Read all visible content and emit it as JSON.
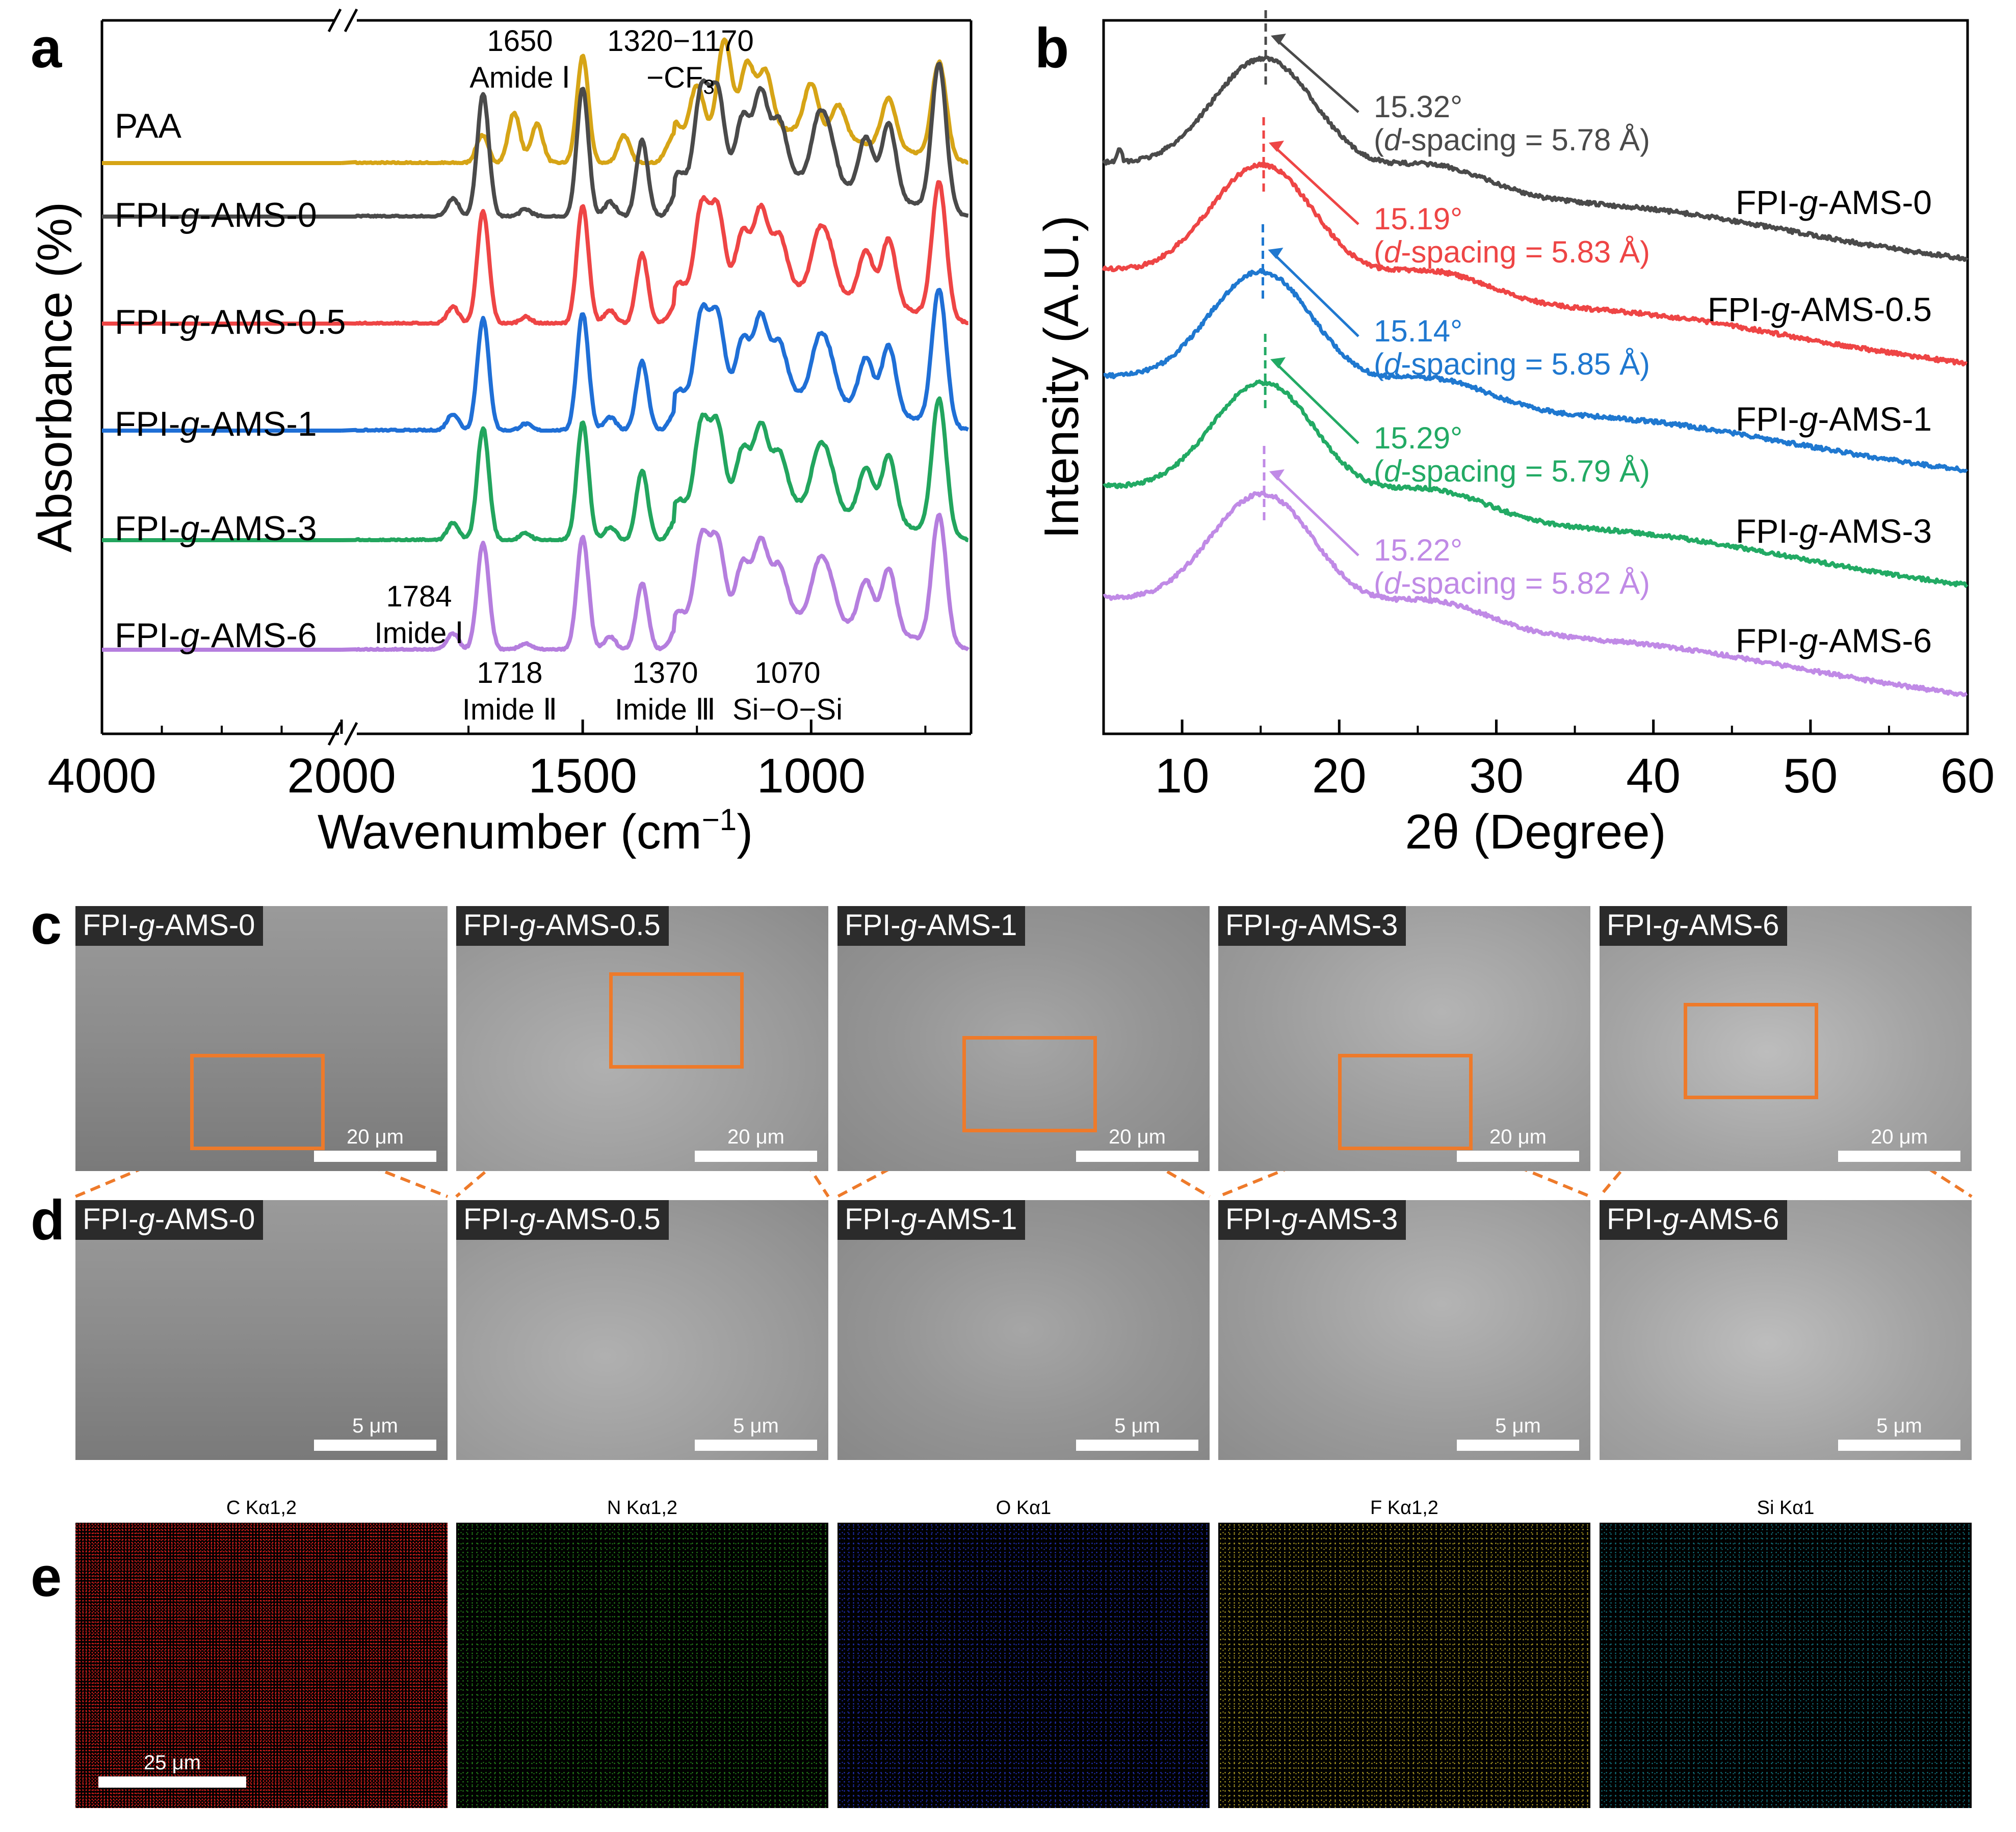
{
  "panel_labels": {
    "a": "a",
    "b": "b",
    "c": "c",
    "d": "d",
    "e": "e"
  },
  "chart_data": [
    {
      "panel": "a",
      "type": "line",
      "title": "",
      "xlabel_main": "Wavenumber (cm",
      "xlabel_sup": "−1",
      "xlabel_close": ")",
      "ylabel": "Absorbance (%)",
      "x_ticks": [
        "4000",
        "2000",
        "1500",
        "1000"
      ],
      "x_axis_break": true,
      "x_ranges": [
        [
          4000,
          2000
        ],
        [
          2000,
          650
        ]
      ],
      "series": [
        {
          "name": "PAA",
          "color": "#D6A416",
          "label_parts": [
            "PAA"
          ]
        },
        {
          "name": "FPI-g-AMS-0",
          "color": "#4A4A4A",
          "label_parts": [
            "FPI-",
            "g",
            "-AMS-0"
          ]
        },
        {
          "name": "FPI-g-AMS-0.5",
          "color": "#EE4545",
          "label_parts": [
            "FPI-",
            "g",
            "-AMS-0.5"
          ]
        },
        {
          "name": "FPI-g-AMS-1",
          "color": "#1F6FD6",
          "label_parts": [
            "FPI-",
            "g",
            "-AMS-1"
          ]
        },
        {
          "name": "FPI-g-AMS-3",
          "color": "#22A55E",
          "label_parts": [
            "FPI-",
            "g",
            "-AMS-3"
          ]
        },
        {
          "name": "FPI-g-AMS-6",
          "color": "#B57EDE",
          "label_parts": [
            "FPI-",
            "g",
            "-AMS-6"
          ]
        }
      ],
      "peaks_imide": [
        {
          "x": 1784,
          "h": 0.15
        },
        {
          "x": 1718,
          "h": 1.0
        },
        {
          "x": 1625,
          "h": 0.06
        },
        {
          "x": 1500,
          "h": 1.05
        },
        {
          "x": 1440,
          "h": 0.12
        },
        {
          "x": 1370,
          "h": 0.62
        },
        {
          "x": 1290,
          "h": 0.22
        },
        {
          "x": 1240,
          "h": 0.85
        },
        {
          "x": 1205,
          "h": 0.8
        },
        {
          "x": 1150,
          "h": 0.55
        },
        {
          "x": 1110,
          "h": 0.72
        },
        {
          "x": 1070,
          "h": 0.45
        },
        {
          "x": 985,
          "h": 0.45
        },
        {
          "x": 960,
          "h": 0.35
        },
        {
          "x": 880,
          "h": 0.45
        },
        {
          "x": 830,
          "h": 0.6
        },
        {
          "x": 720,
          "h": 1.2
        }
      ],
      "peaks_paa": [
        {
          "x": 1720,
          "h": 0.25
        },
        {
          "x": 1650,
          "h": 0.45
        },
        {
          "x": 1600,
          "h": 0.35
        },
        {
          "x": 1500,
          "h": 0.95
        },
        {
          "x": 1410,
          "h": 0.25
        },
        {
          "x": 1300,
          "h": 0.25
        },
        {
          "x": 1250,
          "h": 0.55
        },
        {
          "x": 1190,
          "h": 0.9
        },
        {
          "x": 1140,
          "h": 0.65
        },
        {
          "x": 1100,
          "h": 0.55
        },
        {
          "x": 1000,
          "h": 0.45
        },
        {
          "x": 940,
          "h": 0.3
        },
        {
          "x": 830,
          "h": 0.45
        },
        {
          "x": 720,
          "h": 0.85
        }
      ],
      "annotations": [
        {
          "id": "a1650",
          "lines": [
            "1650",
            "Amide Ⅰ"
          ]
        },
        {
          "id": "a1320",
          "lines": [
            "1320−1170",
            "−CF3"
          ]
        },
        {
          "id": "a1784",
          "lines": [
            "1784",
            "Imide Ⅰ"
          ]
        },
        {
          "id": "a1718",
          "lines": [
            "1718",
            "Imide Ⅱ"
          ]
        },
        {
          "id": "a1370",
          "lines": [
            "1370",
            "Imide Ⅲ"
          ]
        },
        {
          "id": "a1070",
          "lines": [
            "1070",
            "Si−O−Si"
          ]
        }
      ]
    },
    {
      "panel": "b",
      "type": "line",
      "title": "",
      "xlabel": "2θ (Degree)",
      "ylabel": "Intensity (A.U.)",
      "xlim": [
        5,
        60
      ],
      "x_ticks": [
        10,
        20,
        30,
        40,
        50,
        60
      ],
      "series": [
        {
          "name": "FPI-g-AMS-0",
          "color": "#4A4A4A",
          "peak": 15.32,
          "d_spacing": "5.78 Å",
          "peak_label": "15.32°",
          "d_label": "(d-spacing = 5.78 Å)",
          "label_parts": [
            "FPI-",
            "g",
            "-AMS-0"
          ]
        },
        {
          "name": "FPI-g-AMS-0.5",
          "color": "#EE4545",
          "peak": 15.19,
          "d_spacing": "5.83 Å",
          "peak_label": "15.19°",
          "d_label": "(d-spacing = 5.83 Å)",
          "label_parts": [
            "FPI-",
            "g",
            "-AMS-0.5"
          ]
        },
        {
          "name": "FPI-g-AMS-1",
          "color": "#1F78D0",
          "peak": 15.14,
          "d_spacing": "5.85 Å",
          "peak_label": "15.14°",
          "d_label": "(d-spacing = 5.85 Å)",
          "label_parts": [
            "FPI-",
            "g",
            "-AMS-1"
          ]
        },
        {
          "name": "FPI-g-AMS-3",
          "color": "#22AA64",
          "peak": 15.29,
          "d_spacing": "5.79 Å",
          "peak_label": "15.29°",
          "d_label": "(d-spacing = 5.79 Å)",
          "label_parts": [
            "FPI-",
            "g",
            "-AMS-3"
          ]
        },
        {
          "name": "FPI-g-AMS-6",
          "color": "#C08AE6",
          "peak": 15.22,
          "d_spacing": "5.82 Å",
          "peak_label": "15.22°",
          "d_label": "(d-spacing = 5.82 Å)",
          "label_parts": [
            "FPI-",
            "g",
            "-AMS-6"
          ]
        }
      ]
    }
  ],
  "sem_c": {
    "scale_bar": "20 μm",
    "tiles": [
      {
        "label_parts": [
          "FPI-",
          "g",
          "-AMS-0"
        ]
      },
      {
        "label_parts": [
          "FPI-",
          "g",
          "-AMS-0.5"
        ]
      },
      {
        "label_parts": [
          "FPI-",
          "g",
          "-AMS-1"
        ]
      },
      {
        "label_parts": [
          "FPI-",
          "g",
          "-AMS-3"
        ]
      },
      {
        "label_parts": [
          "FPI-",
          "g",
          "-AMS-6"
        ]
      }
    ]
  },
  "sem_d": {
    "scale_bar": "5 μm",
    "tiles": [
      {
        "label_parts": [
          "FPI-",
          "g",
          "-AMS-0"
        ]
      },
      {
        "label_parts": [
          "FPI-",
          "g",
          "-AMS-0.5"
        ]
      },
      {
        "label_parts": [
          "FPI-",
          "g",
          "-AMS-1"
        ]
      },
      {
        "label_parts": [
          "FPI-",
          "g",
          "-AMS-3"
        ]
      },
      {
        "label_parts": [
          "FPI-",
          "g",
          "-AMS-6"
        ]
      }
    ]
  },
  "eds_e": {
    "scale_bar": "25 μm",
    "maps": [
      {
        "element": "C Kα1,2",
        "color": "#E0201E"
      },
      {
        "element": "N Kα1,2",
        "color": "#2FA823"
      },
      {
        "element": "O Kα1",
        "color": "#2A3CE0"
      },
      {
        "element": "F Kα1,2",
        "color": "#C8B42A"
      },
      {
        "element": "Si Kα1",
        "color": "#1BA8B8"
      }
    ]
  }
}
